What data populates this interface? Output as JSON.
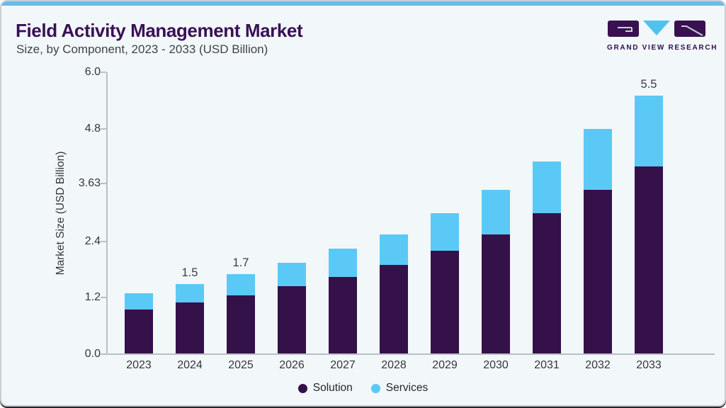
{
  "header": {
    "title": "Field Activity Management Market",
    "subtitle": "Size, by Component, 2023 - 2033 (USD Billion)",
    "brand": {
      "name": "GRAND VIEW RESEARCH"
    }
  },
  "chart_data": {
    "type": "bar",
    "stacked": true,
    "title": "Field Activity Management Market Size, by Component, 2023 - 2033 (USD Billion)",
    "categories": [
      "2023",
      "2024",
      "2025",
      "2026",
      "2027",
      "2028",
      "2029",
      "2030",
      "2031",
      "2032",
      "2033"
    ],
    "series": [
      {
        "name": "Solution",
        "color": "#341149",
        "values": [
          0.95,
          1.1,
          1.25,
          1.45,
          1.65,
          1.9,
          2.2,
          2.55,
          3.0,
          3.5,
          4.0
        ]
      },
      {
        "name": "Services",
        "color": "#5bc9f5",
        "values": [
          0.35,
          0.4,
          0.45,
          0.5,
          0.6,
          0.65,
          0.8,
          0.95,
          1.1,
          1.3,
          1.5
        ]
      }
    ],
    "totals": [
      1.3,
      1.5,
      1.7,
      1.95,
      2.25,
      2.55,
      3.0,
      3.5,
      4.1,
      4.8,
      5.5
    ],
    "bar_total_labels": [
      "",
      "1.5",
      "1.7",
      "",
      "",
      "",
      "",
      "",
      "",
      "",
      "5.5"
    ],
    "xlabel": "",
    "ylabel": "Market Size (USD Billion)",
    "yticks": [
      "6.0",
      "4.8",
      "3.63",
      "2.4",
      "1.2",
      "0.0"
    ],
    "ytick_values": [
      6.0,
      4.8,
      3.63,
      2.4,
      1.2,
      0.0
    ],
    "ylim": [
      0,
      6.0
    ],
    "grid": false,
    "legend_position": "bottom"
  },
  "colors": {
    "background": "#f2f7fa",
    "top_accent": "#68bce9",
    "title_text": "#3a0f56",
    "subtitle_text": "#3f4347",
    "solution_bar": "#341149",
    "services_bar": "#5bc9f5",
    "axis_text": "#33373b",
    "axis_line": "#b9bfc5",
    "logo_purple": "#3a1150",
    "logo_cyan": "#4fc3f0"
  }
}
